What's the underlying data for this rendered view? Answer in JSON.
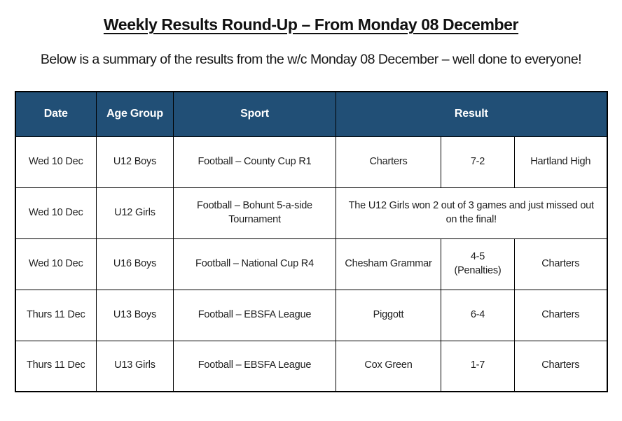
{
  "page": {
    "title": "Weekly Results Round-Up – From Monday 08 December",
    "subtitle": "Below is a summary of the results from the w/c Monday 08 December – well done to everyone!"
  },
  "table": {
    "headers": [
      "Date",
      "Age Group",
      "Sport",
      "Result"
    ],
    "rows": [
      {
        "date": "Wed 10 Dec",
        "age_group": "U12 Boys",
        "sport": "Football – County Cup R1",
        "result_home": "Charters",
        "result_score": "7-2",
        "result_away": "Hartland High"
      },
      {
        "date": "Wed 10 Dec",
        "age_group": "U12 Girls",
        "sport": "Football – Bohunt 5-a-side Tournament",
        "result_summary": "The U12 Girls won 2 out of 3 games and just missed out on the final!"
      },
      {
        "date": "Wed 10 Dec",
        "age_group": "U16 Boys",
        "sport": "Football – National Cup R4",
        "result_home": "Chesham Grammar",
        "result_score": "4-5 (Penalties)",
        "result_away": "Charters"
      },
      {
        "date": "Thurs 11 Dec",
        "age_group": "U13 Boys",
        "sport": "Football – EBSFA League",
        "result_home": "Piggott",
        "result_score": "6-4",
        "result_away": "Charters"
      },
      {
        "date": "Thurs 11 Dec",
        "age_group": "U13 Girls",
        "sport": "Football – EBSFA League",
        "result_home": "Cox Green",
        "result_score": "1-7",
        "result_away": "Charters"
      }
    ],
    "colors": {
      "header_bg": "#214F76",
      "header_text": "#FFFFFF",
      "border": "#000000",
      "body_text": "#1F1F1F"
    }
  }
}
